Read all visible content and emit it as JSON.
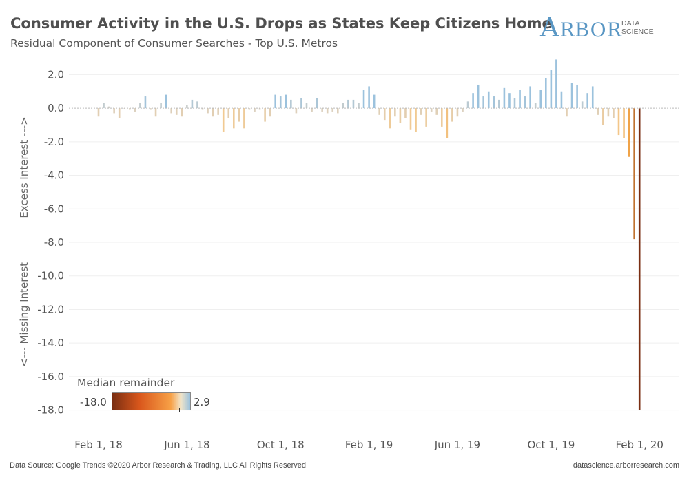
{
  "header": {
    "title": "Consumer Activity in the U.S. Drops as States Keep Citizens Home",
    "subtitle": "Residual Component of Consumer Searches - Top U.S. Metros"
  },
  "logo": {
    "word_first": "A",
    "word_rest": "RBOR",
    "line1": "DATA",
    "line2": "SCIENCE"
  },
  "legend": {
    "title": "Median remainder",
    "min_label": "-18.0",
    "max_label": "2.9"
  },
  "footer": {
    "left": "Data Source: Google Trends   ©2020 Arbor Research & Trading, LLC   All Rights Reserved",
    "right": "datascience.arborresearch.com"
  },
  "colors": {
    "positive": "#9cc2dd",
    "near_zero": "#d9d2c6",
    "negative_light": "#f3c98e",
    "negative_mid": "#f0a043",
    "negative_dark": "#7a2e12"
  },
  "chart_data": {
    "type": "bar",
    "title": "Consumer Activity in the U.S. Drops as States Keep Citizens Home",
    "subtitle": "Residual Component of Consumer Searches - Top U.S. Metros",
    "ylabel_top": "Excess Interest --->",
    "ylabel_bottom": "<--- Missing Interest",
    "ylim": [
      -19,
      3
    ],
    "y_ticks": [
      2,
      0,
      -2,
      -4,
      -6,
      -8,
      -10,
      -12,
      -14,
      -16,
      -18
    ],
    "y_tick_labels": [
      "2.0",
      "0.0",
      "-2.0",
      "-4.0",
      "-6.0",
      "-8.0",
      "-10.0",
      "-12.0",
      "-14.0",
      "-16.0",
      "-18.0"
    ],
    "x_tick_labels": [
      "Feb 1, 18",
      "Jun 1, 18",
      "Oct 1, 18",
      "Feb 1, 19",
      "Jun 1, 19",
      "Oct 1, 19",
      "Feb 1, 20"
    ],
    "x_tick_positions": [
      0,
      17,
      35,
      52,
      69,
      87,
      104
    ],
    "grid": "horizontal",
    "color_scale": {
      "min": -18.0,
      "max": 2.9
    },
    "values": [
      -0.5,
      0.3,
      0.1,
      -0.3,
      -0.6,
      0.0,
      -0.1,
      -0.2,
      0.3,
      0.7,
      -0.1,
      -0.5,
      0.3,
      0.8,
      -0.3,
      -0.4,
      -0.5,
      0.2,
      0.5,
      0.4,
      -0.1,
      -0.3,
      -0.5,
      -0.4,
      -1.4,
      -0.6,
      -1.2,
      -0.8,
      -1.2,
      -0.1,
      -0.2,
      -0.1,
      -0.8,
      -0.5,
      0.8,
      0.7,
      0.8,
      0.5,
      -0.3,
      0.6,
      0.3,
      -0.2,
      0.6,
      -0.2,
      -0.3,
      -0.2,
      -0.3,
      0.3,
      0.5,
      0.5,
      0.3,
      1.1,
      1.3,
      0.8,
      -0.4,
      -0.7,
      -1.2,
      -0.5,
      -0.9,
      -0.6,
      -1.3,
      -1.4,
      -0.4,
      -1.1,
      -0.2,
      -0.4,
      -1.1,
      -1.8,
      -0.8,
      -0.5,
      -0.2,
      0.4,
      0.9,
      1.4,
      0.7,
      1.0,
      0.7,
      0.5,
      1.2,
      0.9,
      0.6,
      1.1,
      0.7,
      1.3,
      0.3,
      1.1,
      1.8,
      2.3,
      2.9,
      1.0,
      -0.5,
      1.5,
      1.4,
      0.4,
      0.9,
      1.3,
      -0.4,
      -1.0,
      -0.5,
      -0.6,
      -1.6,
      -1.8,
      -2.9,
      -7.8,
      -18.0
    ]
  }
}
